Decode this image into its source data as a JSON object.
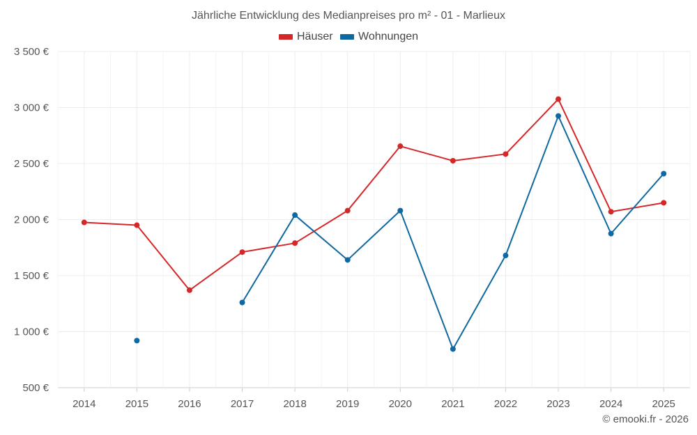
{
  "chart_data": {
    "type": "line",
    "title": "Jährliche Entwicklung des Medianpreises pro m² - 01 - Marlieux",
    "categories": [
      "2014",
      "2015",
      "2016",
      "2017",
      "2018",
      "2019",
      "2020",
      "2021",
      "2022",
      "2023",
      "2024",
      "2025"
    ],
    "y_ticks": [
      "500 €",
      "1 000 €",
      "1 500 €",
      "2 000 €",
      "2 500 €",
      "3 000 €",
      "3 500 €"
    ],
    "ylim": [
      500,
      3500
    ],
    "series": [
      {
        "name": "Häuser",
        "color": "#d62728",
        "values": [
          1975,
          1950,
          1370,
          1710,
          1790,
          2080,
          2655,
          2525,
          2585,
          3075,
          2070,
          2150
        ]
      },
      {
        "name": "Wohnungen",
        "color": "#0f68a0",
        "values": [
          null,
          920,
          null,
          1260,
          2040,
          1640,
          2080,
          845,
          1680,
          2925,
          1875,
          2410
        ]
      }
    ],
    "legend_position": "top-center",
    "credit": "© emooki.fr - 2026"
  }
}
